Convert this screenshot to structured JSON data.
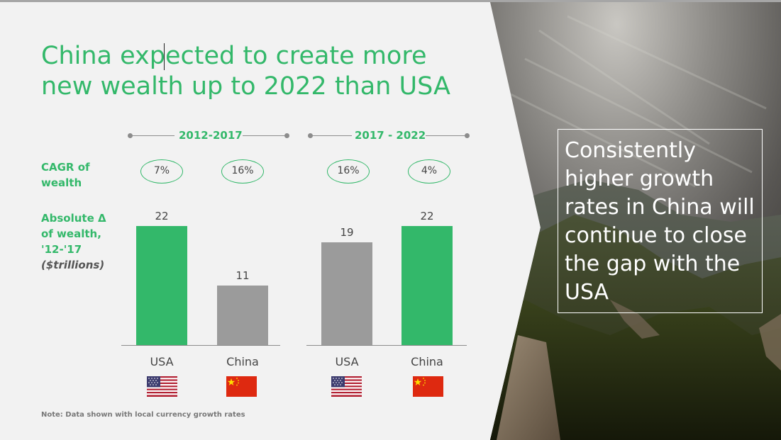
{
  "slide": {
    "title": "China expected to create more\nnew wealth up to 2022 than USA",
    "note": "Note: Data shown with local currency growth rates",
    "callout": "Consistently higher growth rates in China will continue to close the gap with the USA"
  },
  "row_labels": {
    "cagr": "CAGR of wealth",
    "absolute": "Absolute Δ of wealth, '12-'17",
    "absolute_units": "($trillions)"
  },
  "periods": [
    {
      "label": "2012-2017",
      "groups": [
        {
          "country": "USA",
          "cagr": "7%",
          "value_label": "22",
          "flag": "usa-flag-icon"
        },
        {
          "country": "China",
          "cagr": "16%",
          "value_label": "11",
          "flag": "china-flag-icon"
        }
      ]
    },
    {
      "label": "2017 - 2022",
      "groups": [
        {
          "country": "USA",
          "cagr": "16%",
          "value_label": "19",
          "flag": "usa-flag-icon"
        },
        {
          "country": "China",
          "cagr": "4%",
          "value_label": "22",
          "flag": "china-flag-icon"
        }
      ]
    }
  ],
  "colors": {
    "accent_green": "#33b86a",
    "bar_gray": "#9b9b9b",
    "bar_green": "#33b86a"
  },
  "chart_data": {
    "type": "bar",
    "categories": [
      "USA",
      "China"
    ],
    "series": [
      {
        "values": [
          22,
          11
        ]
      },
      {
        "values": [
          19,
          22
        ]
      }
    ],
    "group_labels": [
      "2012-2017",
      "2017 - 2022"
    ],
    "bar_colors": [
      [
        "#33b86a",
        "#9b9b9b"
      ],
      [
        "#9b9b9b",
        "#33b86a"
      ]
    ],
    "ylim": [
      0,
      22
    ],
    "grid": false
  }
}
